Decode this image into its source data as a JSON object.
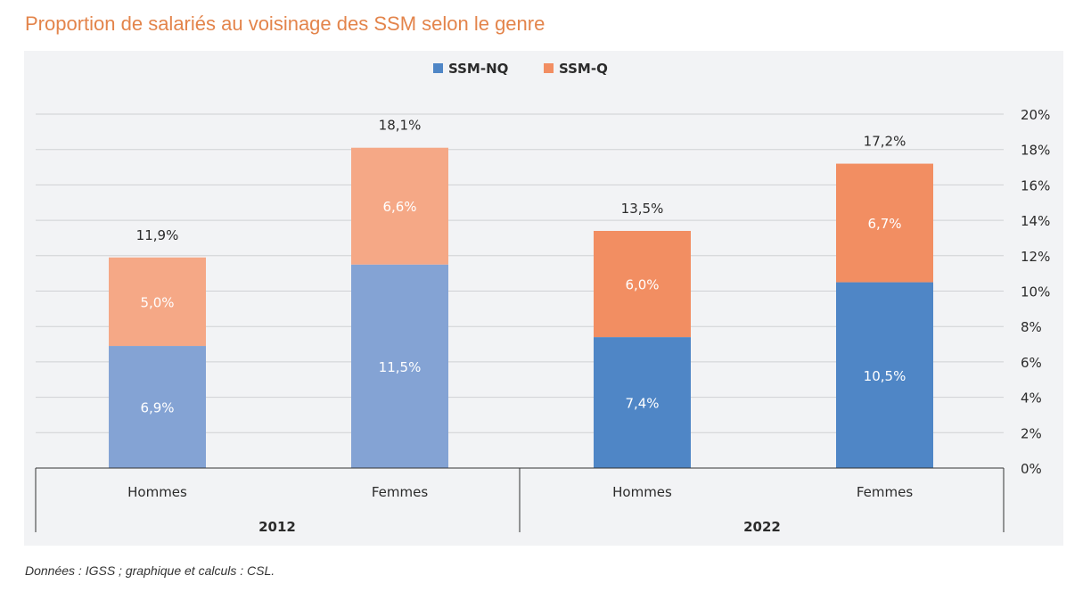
{
  "title": "Proportion de salariés au voisinage des SSM selon le genre",
  "source": "Données : IGSS ; graphique et calculs : CSL.",
  "chart_data": {
    "type": "bar",
    "stacked": true,
    "title": "Proportion de salariés au voisinage des SSM selon le genre",
    "groups": [
      "2012",
      "2022"
    ],
    "categories": [
      "Hommes",
      "Femmes",
      "Hommes",
      "Femmes"
    ],
    "category_group": [
      "2012",
      "2012",
      "2022",
      "2022"
    ],
    "series": [
      {
        "name": "SSM-NQ",
        "values": [
          6.9,
          11.5,
          7.4,
          10.5
        ],
        "labels": [
          "6,9%",
          "11,5%",
          "7,4%",
          "10,5%"
        ],
        "colors": [
          "#84a3d4",
          "#84a3d4",
          "#4f86c6",
          "#4f86c6"
        ]
      },
      {
        "name": "SSM-Q",
        "values": [
          5.0,
          6.6,
          6.0,
          6.7
        ],
        "labels": [
          "5,0%",
          "6,6%",
          "6,0%",
          "6,7%"
        ],
        "colors": [
          "#f5a886",
          "#f5a886",
          "#f28e62",
          "#f28e62"
        ]
      }
    ],
    "totals": [
      "11,9%",
      "18,1%",
      "13,5%",
      "17,2%"
    ],
    "legend_colors": [
      "#4f86c6",
      "#f28e62"
    ],
    "yticks": [
      "0%",
      "2%",
      "4%",
      "6%",
      "8%",
      "10%",
      "12%",
      "14%",
      "16%",
      "18%",
      "20%"
    ],
    "ylim": [
      0,
      20
    ],
    "y_axis_side": "right",
    "grid": true,
    "legend": "top-center"
  }
}
